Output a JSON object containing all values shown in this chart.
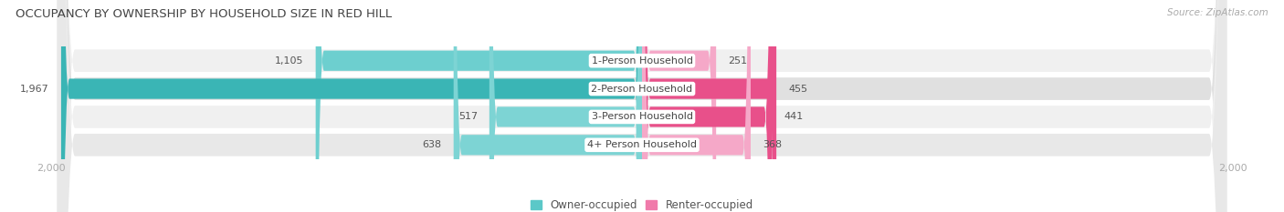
{
  "title": "OCCUPANCY BY OWNERSHIP BY HOUSEHOLD SIZE IN RED HILL",
  "source": "Source: ZipAtlas.com",
  "categories": [
    "1-Person Household",
    "2-Person Household",
    "3-Person Household",
    "4+ Person Household"
  ],
  "owner_values": [
    1105,
    1967,
    517,
    638
  ],
  "renter_values": [
    251,
    455,
    441,
    368
  ],
  "max_scale": 2000,
  "owner_colors": [
    "#6dcfcf",
    "#3ab5b5",
    "#7dd4d4",
    "#7dd4d4"
  ],
  "renter_colors": [
    "#f5a8c8",
    "#e8508a",
    "#e8508a",
    "#f5a8c8"
  ],
  "row_bg_colors": [
    "#f0f0f0",
    "#e0e0e0",
    "#f0f0f0",
    "#e8e8e8"
  ],
  "label_color": "#555555",
  "title_color": "#444444",
  "axis_label_color": "#aaaaaa",
  "background_color": "#ffffff",
  "legend_owner_color": "#5bc8c8",
  "legend_renter_color": "#f07aaa"
}
